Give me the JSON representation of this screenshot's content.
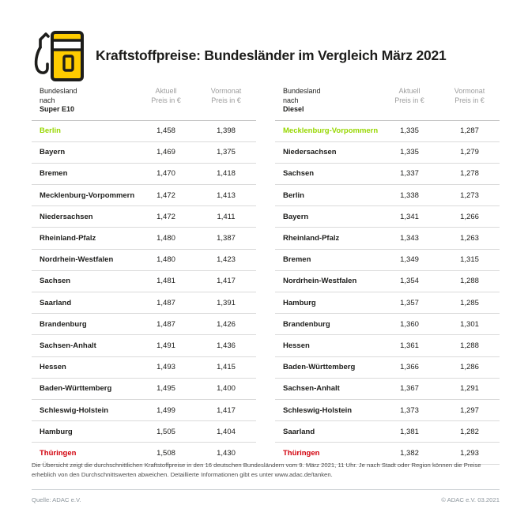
{
  "header": {
    "title": "Kraftstoffpreise: Bundesländer im Vergleich März 2021"
  },
  "tables": [
    {
      "head": {
        "col1_line1": "Bundesland",
        "col1_line2_prefix": "nach ",
        "col1_line2_bold": "Super E10",
        "col2_line1": "Aktuell",
        "col2_line2": "Preis in €",
        "col3_line1": "Vormonat",
        "col3_line2": "Preis in €"
      },
      "rows": [
        {
          "name": "Berlin",
          "aktuell": "1,458",
          "vormonat": "1,398",
          "highlight": "green"
        },
        {
          "name": "Bayern",
          "aktuell": "1,469",
          "vormonat": "1,375"
        },
        {
          "name": "Bremen",
          "aktuell": "1,470",
          "vormonat": "1,418"
        },
        {
          "name": "Mecklenburg-Vorpommern",
          "aktuell": "1,472",
          "vormonat": "1,413"
        },
        {
          "name": "Niedersachsen",
          "aktuell": "1,472",
          "vormonat": "1,411"
        },
        {
          "name": "Rheinland-Pfalz",
          "aktuell": "1,480",
          "vormonat": "1,387"
        },
        {
          "name": "Nordrhein-Westfalen",
          "aktuell": "1,480",
          "vormonat": "1,423"
        },
        {
          "name": "Sachsen",
          "aktuell": "1,481",
          "vormonat": "1,417"
        },
        {
          "name": "Saarland",
          "aktuell": "1,487",
          "vormonat": "1,391"
        },
        {
          "name": "Brandenburg",
          "aktuell": "1,487",
          "vormonat": "1,426"
        },
        {
          "name": "Sachsen-Anhalt",
          "aktuell": "1,491",
          "vormonat": "1,436"
        },
        {
          "name": "Hessen",
          "aktuell": "1,493",
          "vormonat": "1,415"
        },
        {
          "name": "Baden-Württemberg",
          "aktuell": "1,495",
          "vormonat": "1,400"
        },
        {
          "name": "Schleswig-Holstein",
          "aktuell": "1,499",
          "vormonat": "1,417"
        },
        {
          "name": "Hamburg",
          "aktuell": "1,505",
          "vormonat": "1,404"
        },
        {
          "name": "Thüringen",
          "aktuell": "1,508",
          "vormonat": "1,430",
          "highlight": "red"
        }
      ]
    },
    {
      "head": {
        "col1_line1": "Bundesland",
        "col1_line2_prefix": "nach ",
        "col1_line2_bold": "Diesel",
        "col2_line1": "Aktuell",
        "col2_line2": "Preis in €",
        "col3_line1": "Vormonat",
        "col3_line2": "Preis in €"
      },
      "rows": [
        {
          "name": "Mecklenburg-Vorpommern",
          "aktuell": "1,335",
          "vormonat": "1,287",
          "highlight": "green"
        },
        {
          "name": "Niedersachsen",
          "aktuell": "1,335",
          "vormonat": "1,279"
        },
        {
          "name": "Sachsen",
          "aktuell": "1,337",
          "vormonat": "1,278"
        },
        {
          "name": "Berlin",
          "aktuell": "1,338",
          "vormonat": "1,273"
        },
        {
          "name": "Bayern",
          "aktuell": "1,341",
          "vormonat": "1,266"
        },
        {
          "name": "Rheinland-Pfalz",
          "aktuell": "1,343",
          "vormonat": "1,263"
        },
        {
          "name": "Bremen",
          "aktuell": "1,349",
          "vormonat": "1,315"
        },
        {
          "name": "Nordrhein-Westfalen",
          "aktuell": "1,354",
          "vormonat": "1,288"
        },
        {
          "name": "Hamburg",
          "aktuell": "1,357",
          "vormonat": "1,285"
        },
        {
          "name": "Brandenburg",
          "aktuell": "1,360",
          "vormonat": "1,301"
        },
        {
          "name": "Hessen",
          "aktuell": "1,361",
          "vormonat": "1,288"
        },
        {
          "name": "Baden-Württemberg",
          "aktuell": "1,366",
          "vormonat": "1,286"
        },
        {
          "name": "Sachsen-Anhalt",
          "aktuell": "1,367",
          "vormonat": "1,291"
        },
        {
          "name": "Schleswig-Holstein",
          "aktuell": "1,373",
          "vormonat": "1,297"
        },
        {
          "name": "Saarland",
          "aktuell": "1,381",
          "vormonat": "1,282"
        },
        {
          "name": "Thüringen",
          "aktuell": "1,382",
          "vormonat": "1,293",
          "highlight": "red"
        }
      ]
    }
  ],
  "footnote": "Die Übersicht zeigt die durchschnittlichen Kraftstoffpreise in den 16 deutschen Bundesländern vom 9. März 2021, 11 Uhr. Je nach Stadt oder Region können die Preise erheblich von den Durchschnittswerten abweichen. Detaillierte Informationen gibt es unter www.adac.de/tanken.",
  "footer": {
    "source": "Quelle: ADAC e.V.",
    "copyright": "© ADAC e.V. 03.2021"
  },
  "colors": {
    "adac_yellow": "#FFCC00",
    "cheapest_green": "#97D700",
    "most_expensive_red": "#D2000C",
    "text_black": "#1d1d1b",
    "header_gray": "#9c9c9c"
  },
  "chart_data": [
    {
      "type": "table",
      "title": "Kraftstoffpreise Bundesländer im Vergleich März 2021 – Super E10",
      "columns": [
        "Bundesland nach Super E10",
        "Aktuell Preis in €",
        "Vormonat Preis in €"
      ],
      "rows": [
        [
          "Berlin",
          1.458,
          1.398
        ],
        [
          "Bayern",
          1.469,
          1.375
        ],
        [
          "Bremen",
          1.47,
          1.418
        ],
        [
          "Mecklenburg-Vorpommern",
          1.472,
          1.413
        ],
        [
          "Niedersachsen",
          1.472,
          1.411
        ],
        [
          "Rheinland-Pfalz",
          1.48,
          1.387
        ],
        [
          "Nordrhein-Westfalen",
          1.48,
          1.423
        ],
        [
          "Sachsen",
          1.481,
          1.417
        ],
        [
          "Saarland",
          1.487,
          1.391
        ],
        [
          "Brandenburg",
          1.487,
          1.426
        ],
        [
          "Sachsen-Anhalt",
          1.491,
          1.436
        ],
        [
          "Hessen",
          1.493,
          1.415
        ],
        [
          "Baden-Württemberg",
          1.495,
          1.4
        ],
        [
          "Schleswig-Holstein",
          1.499,
          1.417
        ],
        [
          "Hamburg",
          1.505,
          1.404
        ],
        [
          "Thüringen",
          1.508,
          1.43
        ]
      ],
      "annotations": {
        "cheapest_highlight": "Berlin",
        "most_expensive_highlight": "Thüringen"
      }
    },
    {
      "type": "table",
      "title": "Kraftstoffpreise Bundesländer im Vergleich März 2021 – Diesel",
      "columns": [
        "Bundesland nach Diesel",
        "Aktuell Preis in €",
        "Vormonat Preis in €"
      ],
      "rows": [
        [
          "Mecklenburg-Vorpommern",
          1.335,
          1.287
        ],
        [
          "Niedersachsen",
          1.335,
          1.279
        ],
        [
          "Sachsen",
          1.337,
          1.278
        ],
        [
          "Berlin",
          1.338,
          1.273
        ],
        [
          "Bayern",
          1.341,
          1.266
        ],
        [
          "Rheinland-Pfalz",
          1.343,
          1.263
        ],
        [
          "Bremen",
          1.349,
          1.315
        ],
        [
          "Nordrhein-Westfalen",
          1.354,
          1.288
        ],
        [
          "Hamburg",
          1.357,
          1.285
        ],
        [
          "Brandenburg",
          1.36,
          1.301
        ],
        [
          "Hessen",
          1.361,
          1.288
        ],
        [
          "Baden-Württemberg",
          1.366,
          1.286
        ],
        [
          "Sachsen-Anhalt",
          1.367,
          1.291
        ],
        [
          "Schleswig-Holstein",
          1.373,
          1.297
        ],
        [
          "Saarland",
          1.381,
          1.282
        ],
        [
          "Thüringen",
          1.382,
          1.293
        ]
      ],
      "annotations": {
        "cheapest_highlight": "Mecklenburg-Vorpommern",
        "most_expensive_highlight": "Thüringen"
      }
    }
  ]
}
